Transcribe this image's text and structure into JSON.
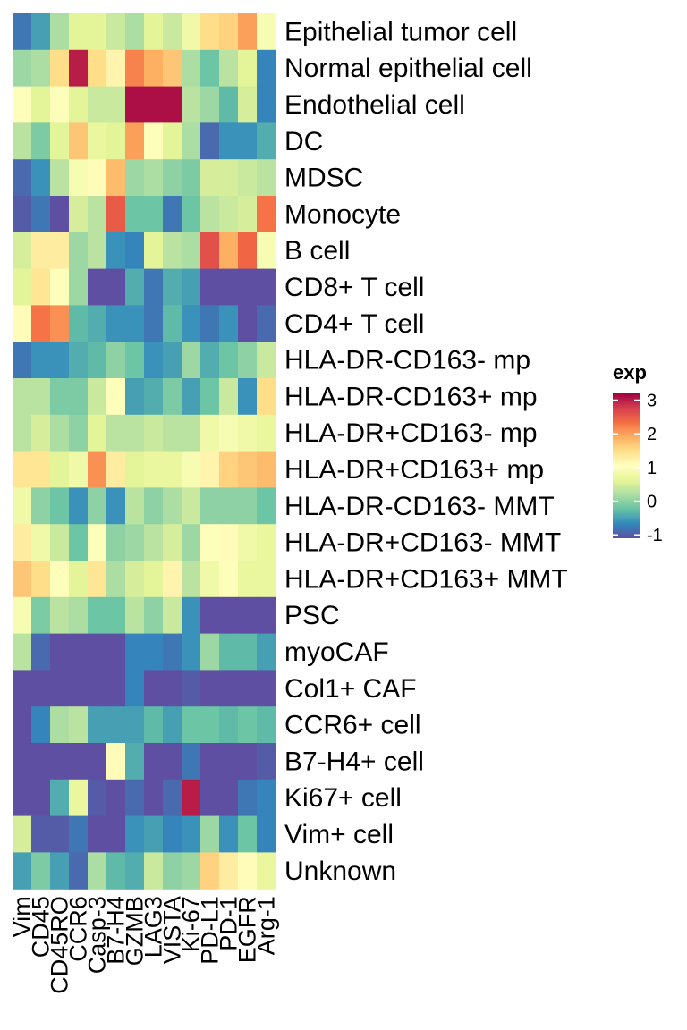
{
  "chart_data": {
    "type": "heatmap",
    "title": "",
    "xlabel": "",
    "ylabel": "",
    "rows": [
      "Epithelial tumor cell",
      "Normal epithelial cell",
      "Endothelial cell",
      "DC",
      "MDSC",
      "Monocyte",
      "B cell",
      "CD8+ T cell",
      "CD4+ T cell",
      "HLA-DR-CD163- mp",
      "HLA-DR-CD163+ mp",
      "HLA-DR+CD163- mp",
      "HLA-DR+CD163+ mp",
      "HLA-DR-CD163- MMT",
      "HLA-DR+CD163- MMT",
      "HLA-DR+CD163+ MMT",
      "PSC",
      "myoCAF",
      "Col1+ CAF",
      "CCR6+ cell",
      "B7-H4+ cell",
      "Ki67+ cell",
      "Vim+ cell",
      "Unknown"
    ],
    "columns": [
      "Vim",
      "CD45",
      "CD45RO",
      "CCR6",
      "Casp-3",
      "B7-H4",
      "GZMB",
      "LAG3",
      "VISTA",
      "Ki-67",
      "PD-L1",
      "PD-1",
      "EGFR",
      "Arg-1"
    ],
    "values": [
      [
        -0.8,
        -0.5,
        0.2,
        0.6,
        0.6,
        0.4,
        0.2,
        0.6,
        0.4,
        0.8,
        1.5,
        1.6,
        2.0,
        0.9
      ],
      [
        0.1,
        0.2,
        1.5,
        3.0,
        1.5,
        1.2,
        2.2,
        1.9,
        1.7,
        0.2,
        -0.2,
        0.3,
        0.6,
        -0.7
      ],
      [
        1.0,
        0.6,
        1.0,
        0.6,
        0.4,
        0.4,
        3.1,
        3.1,
        3.1,
        0.3,
        0.1,
        -0.3,
        0.5,
        -0.7
      ],
      [
        0.3,
        -0.1,
        0.6,
        1.7,
        0.7,
        0.6,
        2.0,
        1.0,
        0.6,
        0.2,
        -0.9,
        -0.6,
        -0.6,
        -0.4
      ],
      [
        -0.9,
        -0.6,
        0.3,
        0.9,
        1.1,
        1.8,
        0.1,
        0.2,
        0.0,
        -0.1,
        0.5,
        0.5,
        0.4,
        0.3
      ],
      [
        -1.0,
        -0.8,
        -1.1,
        0.5,
        0.3,
        2.5,
        -0.2,
        -0.2,
        -0.8,
        -0.2,
        0.3,
        0.4,
        0.5,
        2.3
      ],
      [
        0.5,
        1.3,
        1.3,
        0.1,
        0.3,
        -0.6,
        -0.7,
        0.6,
        0.3,
        0.2,
        2.6,
        1.9,
        2.4,
        0.9
      ],
      [
        0.6,
        1.4,
        1.0,
        0.1,
        -1.1,
        -1.2,
        -0.4,
        -0.8,
        -0.4,
        -0.5,
        -1.1,
        -1.1,
        -1.1,
        -1.1
      ],
      [
        1.1,
        2.3,
        2.1,
        -0.3,
        -0.4,
        -0.6,
        -0.6,
        -0.8,
        -0.3,
        -0.6,
        -0.8,
        -0.6,
        -1.1,
        -0.9
      ],
      [
        -0.8,
        -0.6,
        -0.6,
        -0.4,
        -0.3,
        0.0,
        -0.2,
        -0.6,
        -0.5,
        0.1,
        -0.4,
        -0.2,
        0.0,
        0.4
      ],
      [
        0.3,
        0.3,
        -0.1,
        -0.1,
        0.4,
        1.0,
        -0.5,
        -0.4,
        -0.1,
        -0.5,
        -0.2,
        0.4,
        -0.6,
        1.5
      ],
      [
        0.3,
        0.5,
        0.2,
        0.0,
        0.6,
        0.3,
        0.3,
        0.4,
        0.3,
        0.3,
        0.8,
        0.9,
        0.8,
        0.7
      ],
      [
        1.4,
        1.4,
        0.6,
        0.8,
        2.1,
        1.3,
        0.6,
        0.7,
        0.7,
        0.9,
        1.2,
        1.6,
        1.7,
        1.8
      ],
      [
        0.8,
        0.0,
        -0.2,
        -0.6,
        0.0,
        -0.6,
        0.3,
        0.0,
        0.2,
        0.4,
        0.0,
        0.0,
        0.0,
        -0.2
      ],
      [
        1.3,
        0.8,
        0.4,
        -0.2,
        1.0,
        0.0,
        0.1,
        0.3,
        0.5,
        0.1,
        1.0,
        1.1,
        0.8,
        0.7
      ],
      [
        1.7,
        1.5,
        1.0,
        0.6,
        1.4,
        0.2,
        0.5,
        0.6,
        1.2,
        0.3,
        0.8,
        1.0,
        0.7,
        0.7
      ],
      [
        0.9,
        -0.1,
        0.3,
        0.2,
        -0.2,
        -0.2,
        0.3,
        0.0,
        0.4,
        -0.6,
        -1.1,
        -1.1,
        -1.1,
        -1.1
      ],
      [
        0.3,
        -0.9,
        -1.1,
        -1.1,
        -1.1,
        -1.1,
        -0.7,
        -0.7,
        -0.8,
        -0.6,
        0.1,
        -0.3,
        -0.3,
        -0.5
      ],
      [
        -1.1,
        -1.1,
        -1.1,
        -1.1,
        -1.1,
        -1.1,
        -0.7,
        -1.1,
        -1.1,
        -1.0,
        -1.1,
        -1.1,
        -1.1,
        -1.1
      ],
      [
        -1.1,
        -0.7,
        0.2,
        0.3,
        -0.5,
        -0.5,
        -0.5,
        -0.3,
        -0.5,
        -0.2,
        -0.2,
        -0.3,
        -0.2,
        -0.3
      ],
      [
        -1.1,
        -1.1,
        -1.1,
        -1.1,
        -1.1,
        1.1,
        -0.4,
        -1.1,
        -1.1,
        -0.8,
        -1.1,
        -1.1,
        -1.1,
        -1.0
      ],
      [
        -1.1,
        -1.1,
        -0.4,
        0.7,
        -1.0,
        -1.1,
        -0.9,
        -1.1,
        -0.9,
        3.0,
        -1.1,
        -1.1,
        -0.8,
        -0.7
      ],
      [
        0.5,
        -1.0,
        -1.0,
        -0.8,
        -1.1,
        -1.1,
        -0.6,
        -0.5,
        -0.7,
        -0.6,
        0.1,
        -0.6,
        -0.2,
        -0.7
      ],
      [
        -0.5,
        -0.1,
        -0.5,
        -0.9,
        0.2,
        -0.3,
        -0.4,
        0.4,
        0.0,
        0.1,
        1.6,
        1.3,
        1.1,
        0.7
      ]
    ],
    "colorscale": [
      "#5E4FA2",
      "#3288BD",
      "#66C2A5",
      "#ABDDA4",
      "#E6F598",
      "#FFFFBF",
      "#FEE08B",
      "#FDAE61",
      "#F46D43",
      "#D53E4F",
      "#9E0142"
    ],
    "range": [
      -1.1,
      3.2
    ],
    "legend": {
      "title": "exp",
      "ticks": [
        3,
        2,
        1,
        0,
        -1
      ],
      "tick_labels": [
        "3",
        "2",
        "1",
        "0",
        "-1"
      ],
      "placement": "right"
    }
  }
}
